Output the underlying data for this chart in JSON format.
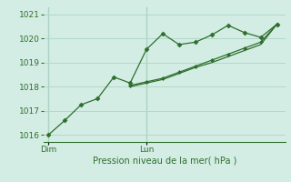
{
  "xlabel": "Pression niveau de la mer( hPa )",
  "bg_color": "#d4ede4",
  "grid_color": "#b0d8c8",
  "line_color": "#2d6e2d",
  "ylim": [
    1015.7,
    1021.3
  ],
  "yticks": [
    1016,
    1017,
    1018,
    1019,
    1020,
    1021
  ],
  "series1_x": [
    0,
    1,
    2,
    3,
    4,
    5,
    6,
    7,
    8,
    9,
    10,
    11,
    12,
    13,
    14
  ],
  "series1_y": [
    1016.0,
    1016.6,
    1017.25,
    1017.5,
    1018.4,
    1018.15,
    1019.55,
    1020.2,
    1019.75,
    1019.85,
    1020.15,
    1020.55,
    1020.25,
    1020.05,
    1020.6
  ],
  "series2_x": [
    5,
    6,
    7,
    8,
    9,
    10,
    11,
    12,
    13,
    14
  ],
  "series2_y": [
    1018.05,
    1018.2,
    1018.35,
    1018.6,
    1018.85,
    1019.1,
    1019.35,
    1019.6,
    1019.85,
    1020.6
  ],
  "series3_x": [
    5,
    6,
    7,
    8,
    9,
    10,
    11,
    12,
    13,
    14
  ],
  "series3_y": [
    1018.0,
    1018.15,
    1018.3,
    1018.55,
    1018.8,
    1019.0,
    1019.25,
    1019.5,
    1019.75,
    1020.6
  ],
  "vline_positions": [
    0,
    6
  ],
  "xtick_positions": [
    0,
    6
  ],
  "xtick_labels": [
    "Dim",
    "Lun"
  ],
  "xlim": [
    -0.3,
    14.5
  ]
}
